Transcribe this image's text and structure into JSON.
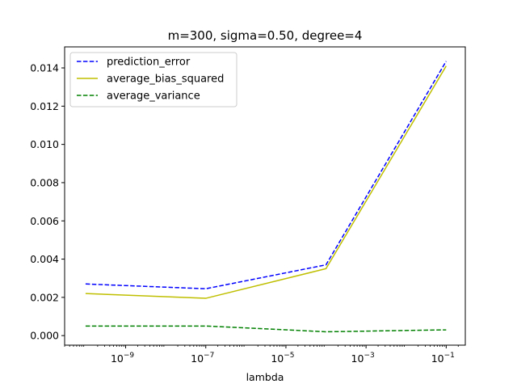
{
  "chart_data": {
    "type": "line",
    "title": "m=300, sigma=0.50, degree=4",
    "xlabel": "lambda",
    "ylabel": "",
    "xscale": "log",
    "x": [
      1e-10,
      1e-07,
      0.0001,
      0.1
    ],
    "xlim": [
      3e-11,
      0.3
    ],
    "ylim": [
      -0.0005,
      0.0151
    ],
    "x_ticks": [
      {
        "value": 1e-09,
        "base": "10",
        "exp": "−9"
      },
      {
        "value": 1e-07,
        "base": "10",
        "exp": "−7"
      },
      {
        "value": 1e-05,
        "base": "10",
        "exp": "−5"
      },
      {
        "value": 0.001,
        "base": "10",
        "exp": "−3"
      },
      {
        "value": 0.1,
        "base": "10",
        "exp": "−1"
      }
    ],
    "y_ticks": [
      {
        "value": 0.0,
        "label": "0.000"
      },
      {
        "value": 0.002,
        "label": "0.002"
      },
      {
        "value": 0.004,
        "label": "0.004"
      },
      {
        "value": 0.006,
        "label": "0.006"
      },
      {
        "value": 0.008,
        "label": "0.008"
      },
      {
        "value": 0.01,
        "label": "0.010"
      },
      {
        "value": 0.012,
        "label": "0.012"
      },
      {
        "value": 0.014,
        "label": "0.014"
      }
    ],
    "series": [
      {
        "name": "prediction_error",
        "color": "#0000ff",
        "style": "dashed",
        "values": [
          0.0027,
          0.00245,
          0.0037,
          0.01435
        ]
      },
      {
        "name": "average_bias_squared",
        "color": "#bfbf00",
        "style": "solid",
        "values": [
          0.0022,
          0.00195,
          0.0035,
          0.0141
        ]
      },
      {
        "name": "average_variance",
        "color": "#008000",
        "style": "dashed",
        "values": [
          0.0005,
          0.0005,
          0.0002,
          0.0003
        ]
      }
    ],
    "legend_position": "upper-left",
    "grid": false
  }
}
